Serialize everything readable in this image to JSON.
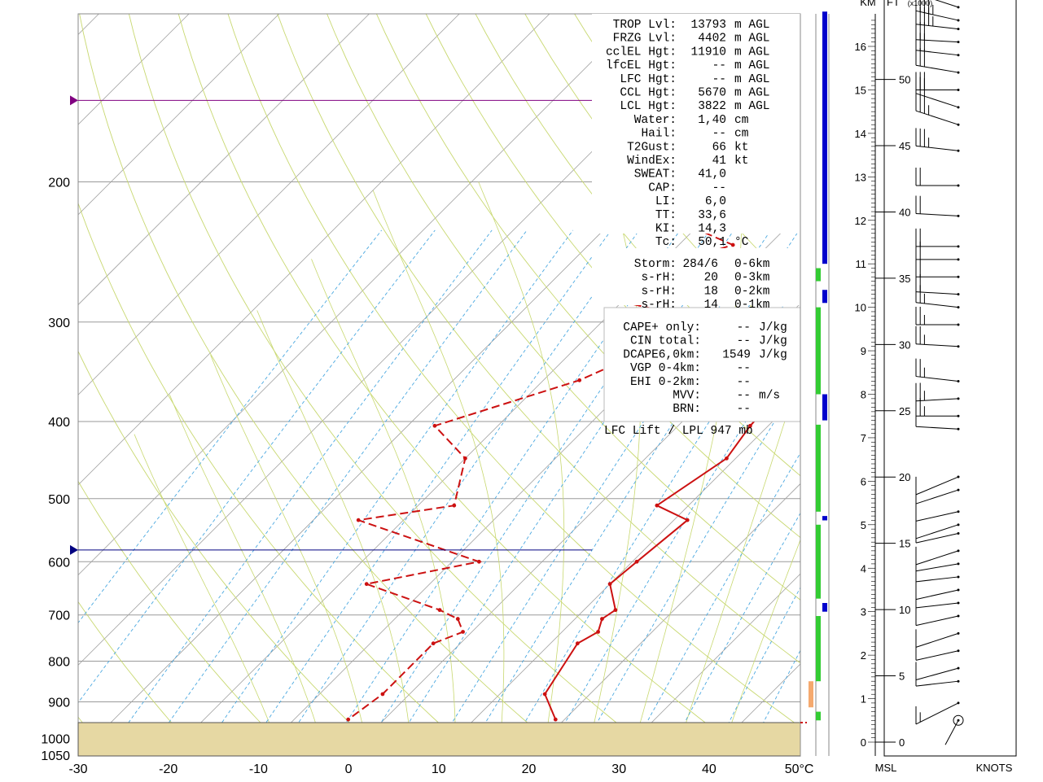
{
  "chart_data": {
    "type": "skew-t sounding",
    "x_ticks": [
      "-30",
      "-20",
      "-10",
      "0",
      "10",
      "20",
      "30",
      "40"
    ],
    "x_unit_label": "50°C",
    "pressure_ticks": [
      "200",
      "300",
      "400",
      "500",
      "600",
      "700",
      "800",
      "900",
      "1000",
      "1050"
    ],
    "temperature_profile": [
      {
        "p": 130,
        "t": 15.0
      },
      {
        "p": 142,
        "t": 14.0
      },
      {
        "p": 164,
        "t": 11.0
      },
      {
        "p": 180,
        "t": 8.0
      },
      {
        "p": 184,
        "t": 8.0
      },
      {
        "p": 186,
        "t": 7.5
      },
      {
        "p": 200,
        "t": 6.5
      },
      {
        "p": 210,
        "t": 5.5
      },
      {
        "p": 220,
        "t": 5.0
      },
      {
        "p": 240,
        "t": 4.5
      },
      {
        "p": 260,
        "t": 4.5
      },
      {
        "p": 280,
        "t": 4.5
      },
      {
        "p": 300,
        "t": 5.5
      },
      {
        "p": 355,
        "t": 7.5
      },
      {
        "p": 405,
        "t": 8.0
      },
      {
        "p": 445,
        "t": 9.0
      },
      {
        "p": 510,
        "t": 6.5
      },
      {
        "p": 532,
        "t": 11.5
      },
      {
        "p": 600,
        "t": 10.5
      },
      {
        "p": 640,
        "t": 10.0
      },
      {
        "p": 690,
        "t": 13.5
      },
      {
        "p": 708,
        "t": 13.0
      },
      {
        "p": 735,
        "t": 14.0
      },
      {
        "p": 760,
        "t": 13.0
      },
      {
        "p": 880,
        "t": 15.0
      },
      {
        "p": 947,
        "t": 19.0
      }
    ],
    "dewpoint_profile": [
      {
        "p": 130,
        "t": -20.0
      },
      {
        "p": 142,
        "t": -27.0
      },
      {
        "p": 164,
        "t": -40.0
      },
      {
        "p": 180,
        "t": -21.0
      },
      {
        "p": 184,
        "t": -19.0
      },
      {
        "p": 186,
        "t": -18.0
      },
      {
        "p": 200,
        "t": -28.0
      },
      {
        "p": 210,
        "t": -22.0
      },
      {
        "p": 220,
        "t": -25.0
      },
      {
        "p": 240,
        "t": -14.0
      },
      {
        "p": 260,
        "t": -21.0
      },
      {
        "p": 280,
        "t": -22.0
      },
      {
        "p": 300,
        "t": -8.0
      },
      {
        "p": 355,
        "t": -16.0
      },
      {
        "p": 405,
        "t": -27.0
      },
      {
        "p": 445,
        "t": -20.0
      },
      {
        "p": 510,
        "t": -16.0
      },
      {
        "p": 532,
        "t": -25.0
      },
      {
        "p": 600,
        "t": -7.0
      },
      {
        "p": 640,
        "t": -17.0
      },
      {
        "p": 690,
        "t": -6.0
      },
      {
        "p": 708,
        "t": -3.0
      },
      {
        "p": 735,
        "t": -1.0
      },
      {
        "p": 760,
        "t": -3.0
      },
      {
        "p": 880,
        "t": -3.0
      },
      {
        "p": 947,
        "t": -4.0
      }
    ],
    "markers": [
      {
        "name": "tropopause",
        "p": 158,
        "color": "#800080"
      },
      {
        "name": "freezing-level",
        "p": 580,
        "color": "#000080"
      }
    ],
    "surface_pressure": 947,
    "stats": [
      {
        "label": "TROP Lvl:",
        "value": "13793",
        "unit": "m AGL"
      },
      {
        "label": "FRZG Lvl:",
        "value": "4402",
        "unit": "m AGL"
      },
      {
        "label": "cclEL Hgt:",
        "value": "11910",
        "unit": "m AGL"
      },
      {
        "label": "lfcEL Hgt:",
        "value": "--",
        "unit": "m AGL"
      },
      {
        "label": "LFC Hgt:",
        "value": "--",
        "unit": "m AGL"
      },
      {
        "label": "CCL Hgt:",
        "value": "5670",
        "unit": "m AGL"
      },
      {
        "label": "LCL Hgt:",
        "value": "3822",
        "unit": "m AGL"
      },
      {
        "label": "Water:",
        "value": "1,40",
        "unit": "cm"
      },
      {
        "label": "Hail:",
        "value": "--",
        "unit": "cm"
      },
      {
        "label": "T2Gust:",
        "value": "66",
        "unit": "kt"
      },
      {
        "label": "WindEx:",
        "value": "41",
        "unit": "kt"
      },
      {
        "label": "SWEAT:",
        "value": "41,0",
        "unit": ""
      },
      {
        "label": "CAP:",
        "value": "--",
        "unit": ""
      },
      {
        "label": "LI:",
        "value": "6,0",
        "unit": ""
      },
      {
        "label": "TT:",
        "value": "33,6",
        "unit": ""
      },
      {
        "label": "KI:",
        "value": "14,3",
        "unit": ""
      },
      {
        "label": "Tc:",
        "value": "50,1",
        "unit": "°C"
      }
    ],
    "storm": [
      {
        "label": "Storm:",
        "value": "284/6",
        "unit": "0-6km"
      },
      {
        "label": "s-rH:",
        "value": "20",
        "unit": "0-3km"
      },
      {
        "label": "s-rH:",
        "value": "18",
        "unit": "0-2km"
      },
      {
        "label": "s-rH:",
        "value": "14",
        "unit": "0-1km"
      }
    ],
    "cape": [
      {
        "label": "CAPE+ only:",
        "value": "--",
        "unit": "J/kg"
      },
      {
        "label": "CIN total:",
        "value": "--",
        "unit": "J/kg"
      },
      {
        "label": "DCAPE6,0km:",
        "value": "1549",
        "unit": "J/kg"
      },
      {
        "label": "VGP 0-4km:",
        "value": "--",
        "unit": ""
      },
      {
        "label": "EHI 0-2km:",
        "value": "--",
        "unit": ""
      },
      {
        "label": "MVV:",
        "value": "--",
        "unit": "m/s"
      },
      {
        "label": "BRN:",
        "value": "--",
        "unit": ""
      }
    ],
    "lfc_lift": "LFC Lift / LPL 947 mb",
    "cloud_bars": [
      {
        "from_km": 11.0,
        "to_km": 16.8,
        "color": "#0000cc"
      },
      {
        "from_km": 10.1,
        "to_km": 10.4,
        "color": "#0000cc"
      },
      {
        "from_km": 7.4,
        "to_km": 8.0,
        "color": "#0000cc"
      },
      {
        "from_km": 5.1,
        "to_km": 5.2,
        "color": "#0000cc"
      },
      {
        "from_km": 3.0,
        "to_km": 3.2,
        "color": "#0000cc"
      },
      {
        "from_km": 10.6,
        "to_km": 10.9,
        "color": "#33cc33"
      },
      {
        "from_km": 8.0,
        "to_km": 10.0,
        "color": "#33cc33"
      },
      {
        "from_km": 5.3,
        "to_km": 7.3,
        "color": "#33cc33"
      },
      {
        "from_km": 3.3,
        "to_km": 5.0,
        "color": "#33cc33"
      },
      {
        "from_km": 1.4,
        "to_km": 2.9,
        "color": "#33cc33"
      },
      {
        "from_km": 0.5,
        "to_km": 0.7,
        "color": "#33cc33"
      }
    ],
    "orange_bar": {
      "from_km": 0.8,
      "to_km": 1.4,
      "color": "#f5a96e"
    },
    "height_km_ticks": [
      "0",
      "1",
      "2",
      "3",
      "4",
      "5",
      "6",
      "7",
      "8",
      "9",
      "10",
      "11",
      "12",
      "13",
      "14",
      "15",
      "16"
    ],
    "height_ft_ticks": [
      "0",
      "5",
      "10",
      "15",
      "20",
      "25",
      "30",
      "35",
      "40",
      "45",
      "50"
    ],
    "wind_barbs_km": [
      {
        "h": 16.9,
        "dir": 300,
        "spd": 35
      },
      {
        "h": 16.6,
        "dir": 290,
        "spd": 35
      },
      {
        "h": 16.4,
        "dir": 280,
        "spd": 35
      },
      {
        "h": 16.1,
        "dir": 275,
        "spd": 30
      },
      {
        "h": 15.8,
        "dir": 280,
        "spd": 30
      },
      {
        "h": 15.4,
        "dir": 285,
        "spd": 30
      },
      {
        "h": 15.0,
        "dir": 270,
        "spd": 30
      },
      {
        "h": 14.6,
        "dir": 300,
        "spd": 30
      },
      {
        "h": 14.2,
        "dir": 300,
        "spd": 25
      },
      {
        "h": 13.6,
        "dir": 280,
        "spd": 25
      },
      {
        "h": 12.8,
        "dir": 270,
        "spd": 20
      },
      {
        "h": 12.1,
        "dir": 275,
        "spd": 20
      },
      {
        "h": 11.4,
        "dir": 270,
        "spd": 20
      },
      {
        "h": 11.1,
        "dir": 270,
        "spd": 20
      },
      {
        "h": 10.7,
        "dir": 270,
        "spd": 20
      },
      {
        "h": 10.3,
        "dir": 275,
        "spd": 20
      },
      {
        "h": 10.0,
        "dir": 280,
        "spd": 15
      },
      {
        "h": 9.6,
        "dir": 270,
        "spd": 15
      },
      {
        "h": 9.1,
        "dir": 275,
        "spd": 15
      },
      {
        "h": 8.3,
        "dir": 280,
        "spd": 15
      },
      {
        "h": 7.9,
        "dir": 265,
        "spd": 15
      },
      {
        "h": 7.5,
        "dir": 270,
        "spd": 15
      },
      {
        "h": 7.2,
        "dir": 275,
        "spd": 10
      },
      {
        "h": 6.1,
        "dir": 230,
        "spd": 10
      },
      {
        "h": 5.8,
        "dir": 240,
        "spd": 10
      },
      {
        "h": 5.3,
        "dir": 250,
        "spd": 10
      },
      {
        "h": 5.0,
        "dir": 240,
        "spd": 10
      },
      {
        "h": 4.8,
        "dir": 250,
        "spd": 10
      },
      {
        "h": 4.4,
        "dir": 240,
        "spd": 10
      },
      {
        "h": 4.1,
        "dir": 255,
        "spd": 10
      },
      {
        "h": 3.8,
        "dir": 260,
        "spd": 10
      },
      {
        "h": 3.5,
        "dir": 250,
        "spd": 10
      },
      {
        "h": 3.2,
        "dir": 260,
        "spd": 10
      },
      {
        "h": 2.9,
        "dir": 250,
        "spd": 10
      },
      {
        "h": 2.5,
        "dir": 240,
        "spd": 10
      },
      {
        "h": 2.1,
        "dir": 250,
        "spd": 10
      },
      {
        "h": 1.7,
        "dir": 245,
        "spd": 10
      },
      {
        "h": 1.4,
        "dir": 260,
        "spd": 10
      },
      {
        "h": 0.9,
        "dir": 220,
        "spd": 5
      }
    ],
    "wind_axis_left": "MSL",
    "wind_axis_right": "KNOTS",
    "height_header_km": "KM",
    "height_header_ft": "FT",
    "height_header_ft_sub": "(x1000)"
  }
}
